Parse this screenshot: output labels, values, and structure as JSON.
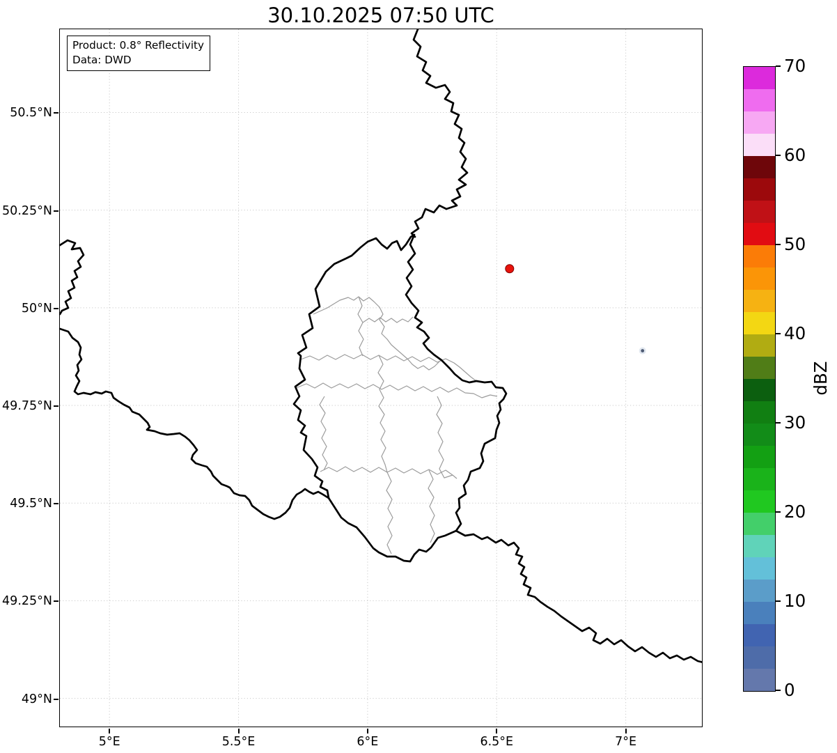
{
  "title": "30.10.2025 07:50 UTC",
  "info_box": {
    "product": "Product: 0.8° Reflectivity",
    "data_source": "Data: DWD"
  },
  "map": {
    "extent": {
      "lon_min": 4.808,
      "lon_max": 7.295,
      "lat_min": 48.928,
      "lat_max": 50.713
    },
    "x_axis": {
      "ticks": [
        {
          "label": "5°E",
          "lon": 5.0
        },
        {
          "label": "5.5°E",
          "lon": 5.5
        },
        {
          "label": "6°E",
          "lon": 6.0
        },
        {
          "label": "6.5°E",
          "lon": 6.5
        },
        {
          "label": "7°E",
          "lon": 7.0
        }
      ]
    },
    "y_axis": {
      "ticks": [
        {
          "label": "50.5°N",
          "lat": 50.5
        },
        {
          "label": "50.25°N",
          "lat": 50.25
        },
        {
          "label": "50°N",
          "lat": 50.0
        },
        {
          "label": "49.75°N",
          "lat": 49.75
        },
        {
          "label": "49.5°N",
          "lat": 49.5
        },
        {
          "label": "49.25°N",
          "lat": 49.25
        },
        {
          "label": "49°N",
          "lat": 49.0
        }
      ]
    },
    "markers": [
      {
        "name": "radar-site-marker",
        "lon": 6.55,
        "lat": 50.1,
        "radius": 6,
        "fill": "#e8130c",
        "stroke": "#7f0000"
      },
      {
        "name": "radar-echo-pixel",
        "lon": 7.065,
        "lat": 49.89,
        "radius": 2.4,
        "fill": "#4d5a73",
        "halo": "#c9d4e2"
      }
    ]
  },
  "colorbar": {
    "label": "dBZ",
    "min": 0,
    "max": 70,
    "ticks": [
      0,
      10,
      20,
      30,
      40,
      50,
      60,
      70
    ],
    "segment_dbz": 2.5,
    "colors_top_to_bottom": [
      "#dc2adc",
      "#ef6cef",
      "#f7a8f3",
      "#fbdef8",
      "#6e060a",
      "#9c090c",
      "#c01116",
      "#e10c12",
      "#fb7c07",
      "#fb9507",
      "#f6b212",
      "#f3d713",
      "#b1ac12",
      "#507d17",
      "#0c5f0f",
      "#117f12",
      "#128c18",
      "#13a013",
      "#1ab31a",
      "#20c820",
      "#43cf6a",
      "#60d3b9",
      "#63c0d9",
      "#5b9dc9",
      "#4a80bc",
      "#4164b1",
      "#4e6ca9",
      "#6478ac"
    ]
  },
  "style": {
    "grid_color": "#c9c9c9",
    "border_color": "#000000",
    "canton_color": "#9b9b9b",
    "background": "#ffffff"
  }
}
